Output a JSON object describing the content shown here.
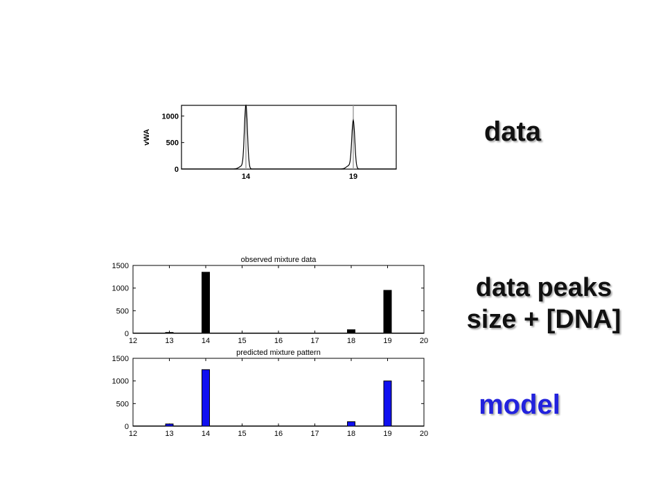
{
  "labels": {
    "data": "data",
    "peaks_line1": "data peaks",
    "peaks_line2": "size + [DNA]",
    "model": "model"
  },
  "colors": {
    "observed_bar": "#000000",
    "predicted_bar": "#1010f0",
    "model_label": "#2222dd",
    "electropherogram_line": "#000000",
    "marker_line": "#999999"
  },
  "chart_data": [
    {
      "type": "line",
      "ylabel": "vWA",
      "yticks": [
        0,
        500,
        1000
      ],
      "ytick_labels": [
        "0",
        "500",
        "1000"
      ],
      "ylim": [
        0,
        1200
      ],
      "xlim": [
        11,
        21
      ],
      "x_tick_labels": [
        {
          "x": 14,
          "label": "14"
        },
        {
          "x": 19,
          "label": "19"
        }
      ],
      "markers": [
        14,
        19
      ],
      "peaks": [
        {
          "x": 14,
          "height": 1200
        },
        {
          "x": 19,
          "height": 900
        },
        {
          "x": 18.8,
          "height": 60
        },
        {
          "x": 13.8,
          "height": 50
        }
      ],
      "grid": false
    },
    {
      "type": "bar",
      "title": "observed mixture data",
      "x": [
        13,
        14,
        18,
        19
      ],
      "values": [
        20,
        1350,
        80,
        950
      ],
      "xlim": [
        12,
        20
      ],
      "ylim": [
        0,
        1500
      ],
      "xticks": [
        12,
        13,
        14,
        15,
        16,
        17,
        18,
        19,
        20
      ],
      "yticks": [
        0,
        500,
        1000,
        1500
      ],
      "grid": false
    },
    {
      "type": "bar",
      "title": "predicted mixture pattern",
      "x": [
        13,
        14,
        18,
        19
      ],
      "values": [
        50,
        1250,
        100,
        1000
      ],
      "xlim": [
        12,
        20
      ],
      "ylim": [
        0,
        1500
      ],
      "xticks": [
        12,
        13,
        14,
        15,
        16,
        17,
        18,
        19,
        20
      ],
      "yticks": [
        0,
        500,
        1000,
        1500
      ],
      "grid": false
    }
  ]
}
